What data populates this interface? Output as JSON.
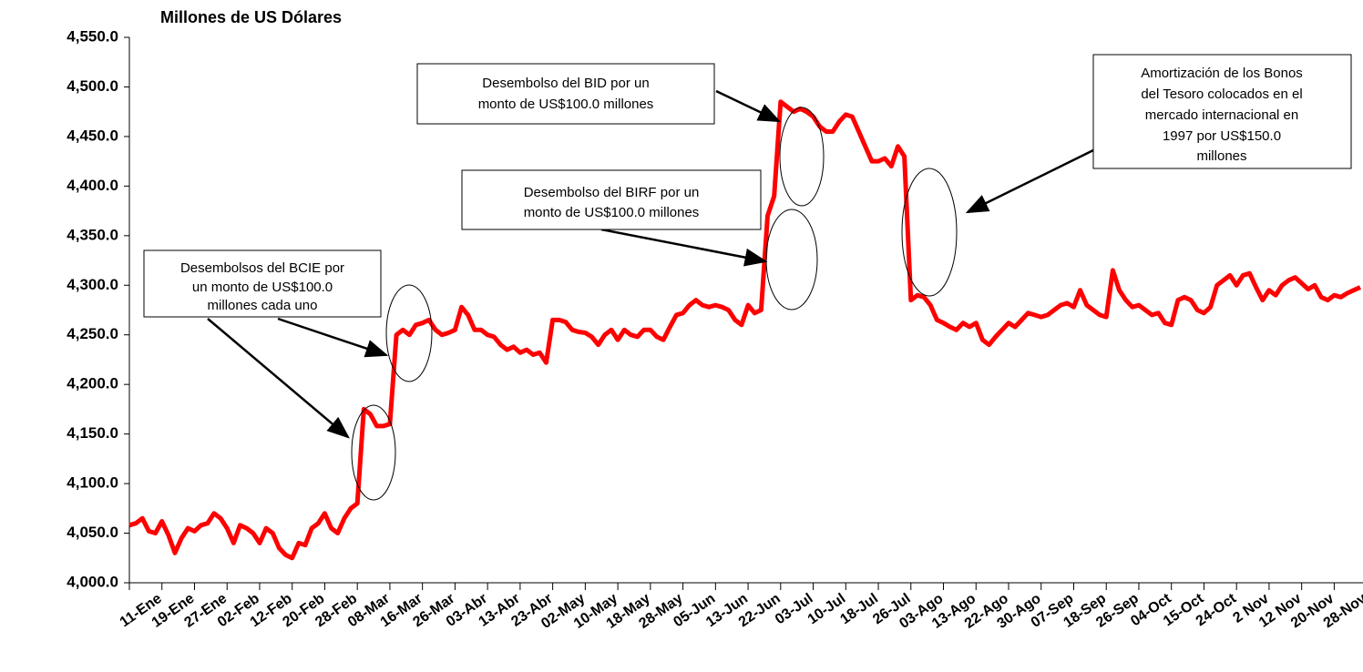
{
  "chart_data": {
    "type": "line",
    "title": "Millones de US Dólares",
    "color": "#ff0000",
    "ylim": [
      4000,
      4550
    ],
    "yticks": [
      {
        "value": 4000,
        "label": "4,000.0"
      },
      {
        "value": 4050,
        "label": "4,050.0"
      },
      {
        "value": 4100,
        "label": "4,100.0"
      },
      {
        "value": 4150,
        "label": "4,150.0"
      },
      {
        "value": 4200,
        "label": "4,200.0"
      },
      {
        "value": 4250,
        "label": "4,250.0"
      },
      {
        "value": 4300,
        "label": "4,300.0"
      },
      {
        "value": 4350,
        "label": "4,350.0"
      },
      {
        "value": 4400,
        "label": "4,400.0"
      },
      {
        "value": 4450,
        "label": "4,450.0"
      },
      {
        "value": 4500,
        "label": "4,500.0"
      },
      {
        "value": 4550,
        "label": "4,550.0"
      }
    ],
    "categories": [
      "11-Ene",
      null,
      null,
      null,
      null,
      "19-Ene",
      null,
      null,
      null,
      null,
      "27-Ene",
      null,
      null,
      null,
      null,
      "02-Feb",
      null,
      null,
      null,
      null,
      "12-Feb",
      null,
      null,
      null,
      null,
      "20-Feb",
      null,
      null,
      null,
      null,
      "28-Feb",
      null,
      null,
      null,
      null,
      "08-Mar",
      null,
      null,
      null,
      null,
      "16-Mar",
      null,
      null,
      null,
      null,
      "26-Mar",
      null,
      null,
      null,
      null,
      "03-Abr",
      null,
      null,
      null,
      null,
      "13-Abr",
      null,
      null,
      null,
      null,
      "23-Abr",
      null,
      null,
      null,
      null,
      "02-May",
      null,
      null,
      null,
      null,
      "10-May",
      null,
      null,
      null,
      null,
      "18-May",
      null,
      null,
      null,
      null,
      "28-May",
      null,
      null,
      null,
      null,
      "05-Jun",
      null,
      null,
      null,
      null,
      "13-Jun",
      null,
      null,
      null,
      null,
      "22-Jun",
      null,
      null,
      null,
      null,
      "03-Jul",
      null,
      null,
      null,
      null,
      "10-Jul",
      null,
      null,
      null,
      null,
      "18-Jul",
      null,
      null,
      null,
      null,
      "26-Jul",
      null,
      null,
      null,
      null,
      "03-Ago",
      null,
      null,
      null,
      null,
      "13-Ago",
      null,
      null,
      null,
      null,
      "22-Ago",
      null,
      null,
      null,
      null,
      "30-Ago",
      null,
      null,
      null,
      null,
      "07-Sep",
      null,
      null,
      null,
      null,
      "18-Sep",
      null,
      null,
      null,
      null,
      "26-Sep",
      null,
      null,
      null,
      null,
      "04-Oct",
      null,
      null,
      null,
      null,
      "15-Oct",
      null,
      null,
      null,
      null,
      "24-Oct",
      null,
      null,
      null,
      null,
      "2 Nov",
      null,
      null,
      null,
      null,
      "12 Nov",
      null,
      null,
      null,
      null,
      "20-Nov",
      null,
      null,
      null,
      null,
      "28-Nov",
      null,
      null,
      null,
      null
    ],
    "values": [
      4058,
      4060,
      4065,
      4052,
      4050,
      4062,
      4048,
      4030,
      4045,
      4055,
      4052,
      4058,
      4060,
      4070,
      4065,
      4055,
      4040,
      4058,
      4055,
      4050,
      4040,
      4055,
      4050,
      4035,
      4028,
      4025,
      4040,
      4038,
      4055,
      4060,
      4070,
      4055,
      4050,
      4065,
      4075,
      4080,
      4175,
      4170,
      4158,
      4158,
      4160,
      4250,
      4255,
      4250,
      4260,
      4262,
      4265,
      4255,
      4250,
      4252,
      4255,
      4278,
      4270,
      4255,
      4255,
      4250,
      4248,
      4240,
      4235,
      4238,
      4232,
      4235,
      4230,
      4232,
      4222,
      4265,
      4265,
      4263,
      4255,
      4253,
      4252,
      4248,
      4240,
      4250,
      4255,
      4245,
      4255,
      4250,
      4248,
      4255,
      4255,
      4248,
      4245,
      4258,
      4270,
      4272,
      4280,
      4285,
      4280,
      4278,
      4280,
      4278,
      4275,
      4265,
      4260,
      4280,
      4272,
      4275,
      4370,
      4390,
      4485,
      4480,
      4475,
      4478,
      4475,
      4470,
      4460,
      4455,
      4455,
      4465,
      4472,
      4470,
      4455,
      4440,
      4425,
      4425,
      4428,
      4420,
      4440,
      4430,
      4285,
      4290,
      4288,
      4280,
      4265,
      4262,
      4258,
      4255,
      4262,
      4258,
      4262,
      4245,
      4240,
      4248,
      4255,
      4262,
      4258,
      4265,
      4272,
      4270,
      4268,
      4270,
      4275,
      4280,
      4282,
      4278,
      4295,
      4280,
      4275,
      4270,
      4268,
      4315,
      4295,
      4285,
      4278,
      4280,
      4275,
      4270,
      4272,
      4262,
      4260,
      4285,
      4288,
      4285,
      4275,
      4272,
      4278,
      4300,
      4305,
      4310,
      4300,
      4310,
      4312,
      4298,
      4285,
      4295,
      4290,
      4300,
      4305,
      4308,
      4302,
      4296,
      4300,
      4288,
      4285,
      4290,
      4288,
      4292,
      4295,
      4298
    ],
    "annotations": [
      {
        "lines": [
          "Desembolsos del BCIE por",
          "un monto de US$100.0",
          "millones cada uno"
        ]
      },
      {
        "lines": [
          "Desembolso del BIRF por un",
          "monto de US$100.0 millones"
        ]
      },
      {
        "lines": [
          "Desembolso del BID por un",
          "monto de US$100.0 millones"
        ]
      },
      {
        "lines": [
          "Amortización de los Bonos",
          "del Tesoro colocados en el",
          "mercado internacional en",
          "1997 por US$150.0",
          "millones"
        ]
      }
    ]
  }
}
